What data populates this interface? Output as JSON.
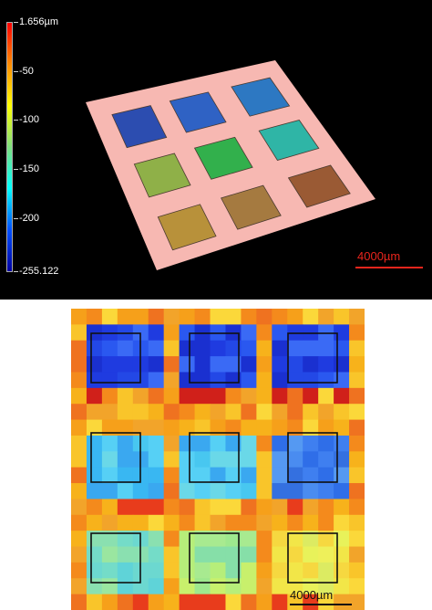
{
  "colorbar": {
    "labels": [
      "1.656µm",
      "-50",
      "-100",
      "-150",
      "-200",
      "-255.122"
    ],
    "values": [
      1.656,
      -50,
      -100,
      -150,
      -200,
      -255.122
    ],
    "colors": [
      "#ff0000",
      "#ff8c00",
      "#ffff00",
      "#7fe07f",
      "#00ffff",
      "#0050ff",
      "#0000a0"
    ]
  },
  "top_view": {
    "scale_bar_label": "4000µm",
    "scale_bar_color": "#e8251c",
    "background": "#000000",
    "substrate_color": "#f7b8b2",
    "pad_colors": [
      [
        "#2c4db0",
        "#2f62c4",
        "#2d78c2"
      ],
      [
        "#8fb048",
        "#32b04c",
        "#2fb5a6"
      ],
      [
        "#b8913a",
        "#a57a40",
        "#9a5a34"
      ]
    ]
  },
  "heatmap": {
    "scale_bar_label": "4000µm",
    "scale_bar_color": "#111111",
    "square_outline_color": "#111111"
  }
}
